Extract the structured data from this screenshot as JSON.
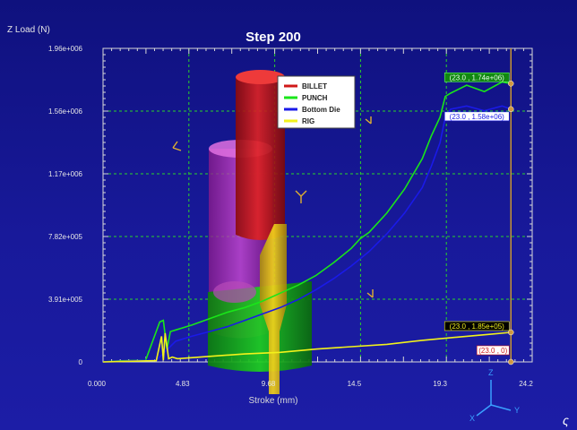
{
  "viewer": {
    "step_title": "Step  200",
    "corner_glyph": "ς"
  },
  "chart_data": {
    "type": "line",
    "ylabel": "Z Load (N)",
    "xlabel": "Stroke (mm)",
    "xlim": [
      0,
      24.2
    ],
    "ylim": [
      0,
      1960000.0
    ],
    "xticks": [
      "0.000",
      "4.83",
      "9.68",
      "14.5",
      "19.3",
      "24.2"
    ],
    "yticks": [
      "0",
      "3.91e+005",
      "7.82e+005",
      "1.17e+006",
      "1.56e+006",
      "1.96e+006"
    ],
    "grid": true,
    "legend_position": "top-center",
    "series": [
      {
        "name": "BILLET",
        "color": "#d01818",
        "x": [],
        "y": []
      },
      {
        "name": "PUNCH",
        "color": "#19e619",
        "x": [
          0,
          1,
          2.4,
          3.2,
          3.4,
          3.6,
          3.8,
          4.1,
          5,
          6,
          7,
          8,
          9,
          10,
          11,
          12,
          13,
          14,
          14.5,
          15,
          16,
          17,
          18,
          18.5,
          19,
          19.3,
          19.6,
          20.5,
          21.5,
          22.5,
          23
        ],
        "y": [
          0,
          7000.0,
          10000.0,
          250000.0,
          260000.0,
          80000.0,
          190000.0,
          200000.0,
          230000.0,
          270000.0,
          310000.0,
          340000.0,
          380000.0,
          430000.0,
          480000.0,
          540000.0,
          620000.0,
          710000.0,
          770000.0,
          810000.0,
          930000.0,
          1080000.0,
          1270000.0,
          1410000.0,
          1530000.0,
          1660000.0,
          1680000.0,
          1730000.0,
          1690000.0,
          1750000.0,
          1740000.0
        ]
      },
      {
        "name": "Bottom Die",
        "color": "#1a1ae8",
        "x": [
          0,
          2,
          3,
          4.1,
          5,
          6,
          7,
          8,
          9,
          10,
          11,
          12,
          13,
          14,
          15,
          16,
          17,
          18,
          18.5,
          19,
          19.3,
          19.6,
          20.5,
          21.5,
          22.5,
          23
        ],
        "y": [
          0,
          8000.0,
          10000.0,
          130000.0,
          160000.0,
          190000.0,
          220000.0,
          260000.0,
          300000.0,
          340000.0,
          390000.0,
          450000.0,
          520000.0,
          600000.0,
          690000.0,
          800000.0,
          930000.0,
          1090000.0,
          1220000.0,
          1370000.0,
          1530000.0,
          1580000.0,
          1600000.0,
          1570000.0,
          1600000.0,
          1580000.0
        ]
      },
      {
        "name": "RIG",
        "color": "#f2f21a",
        "x": [
          0,
          2,
          3,
          3.3,
          3.4,
          3.5,
          3.7,
          3.9,
          4.2,
          6,
          8,
          10,
          12,
          14,
          16,
          18,
          20,
          22,
          23
        ],
        "y": [
          0,
          5000.0,
          8000.0,
          160000.0,
          10000.0,
          180000.0,
          20000.0,
          30000.0,
          20000.0,
          35000.0,
          50000.0,
          60000.0,
          80000.0,
          95000.0,
          110000.0,
          135000.0,
          155000.0,
          175000.0,
          185000.0
        ]
      }
    ],
    "point_labels": [
      {
        "text": "(23.0 , 1.74e+06)",
        "series": "PUNCH",
        "x": 23,
        "y": 1740000.0
      },
      {
        "text": "(23.0 , 1.58e+06)",
        "series": "Bottom Die",
        "x": 23,
        "y": 1580000.0
      },
      {
        "text": "(23.0 , 1.85e+05)",
        "series": "RIG",
        "x": 23,
        "y": 185000.0
      },
      {
        "text": "(23.0 , 0)",
        "series": "BILLET",
        "x": 23,
        "y": 0
      }
    ],
    "cursor_x": 23
  },
  "axis_triad": {
    "z_label": "Z",
    "x_label": "X",
    "y_label": "Y"
  },
  "colors": {
    "background": "#15168e",
    "plot_frame": "#e6e6e6",
    "grid": "#2ad42a",
    "billet": "#c81414",
    "punch_part": "#c43ac4",
    "die_part": "#16b016",
    "rig_part": "#e8c314",
    "cursor": "#c89632",
    "triad": "#3aa0ff"
  }
}
